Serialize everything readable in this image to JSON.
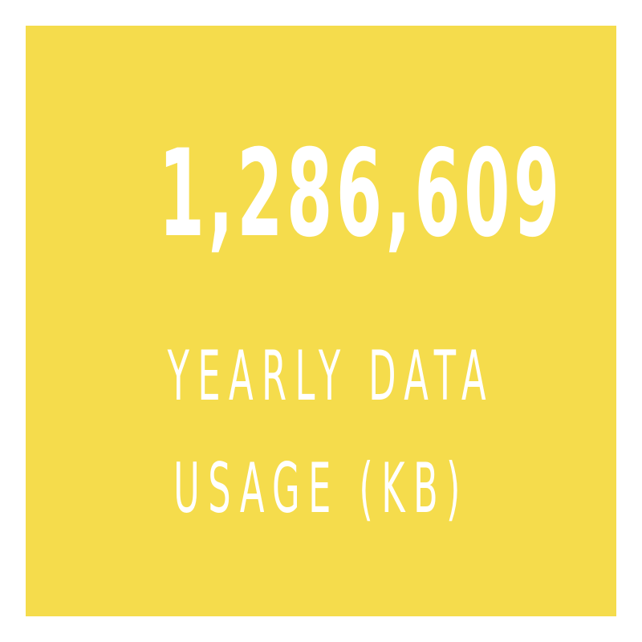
{
  "stat": {
    "value": "1,286,609",
    "label_line_1": "YEARLY DATA",
    "label_line_2": "USAGE (KB)"
  },
  "colors": {
    "card_background": "#f5dc4c",
    "text": "#ffffff",
    "page_background": "#ffffff"
  }
}
